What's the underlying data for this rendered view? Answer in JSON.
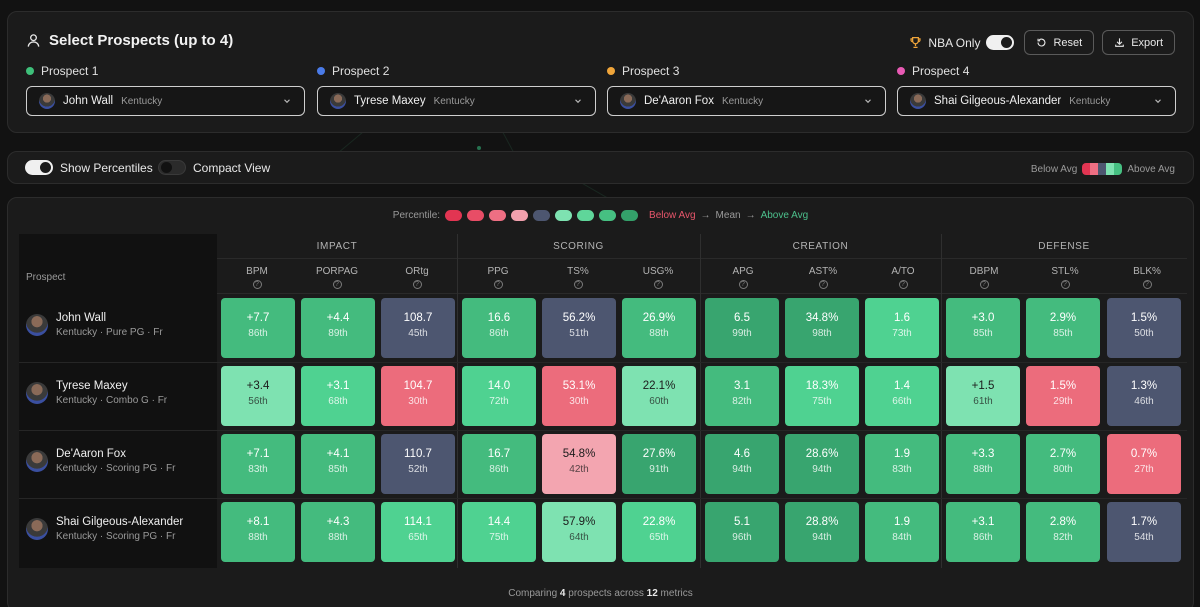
{
  "header": {
    "title": "Select Prospects (up to 4)",
    "nba_only_label": "NBA Only",
    "reset_label": "Reset",
    "export_label": "Export"
  },
  "slots": [
    {
      "label": "Prospect 1",
      "color": "#3ec07a",
      "name": "John Wall",
      "school": "Kentucky"
    },
    {
      "label": "Prospect 2",
      "color": "#4a7be8",
      "name": "Tyrese Maxey",
      "school": "Kentucky"
    },
    {
      "label": "Prospect 3",
      "color": "#f0a53a",
      "name": "De'Aaron Fox",
      "school": "Kentucky"
    },
    {
      "label": "Prospect 4",
      "color": "#e85ab4",
      "name": "Shai Gilgeous-Alexander",
      "school": "Kentucky"
    }
  ],
  "options": {
    "show_percentiles": "Show Percentiles",
    "compact_view": "Compact View",
    "below_avg": "Below Avg",
    "above_avg": "Above Avg"
  },
  "percentile_legend": {
    "label": "Percentile:",
    "below": "Below Avg",
    "mean": "Mean",
    "above": "Above Avg",
    "arrow": "→",
    "colors": [
      "#e23552",
      "#e84d66",
      "#ee6f83",
      "#f2a0ad",
      "#4d5670",
      "#7ee2b1",
      "#5fd69a",
      "#46c082",
      "#34a06a"
    ]
  },
  "table": {
    "prospect_header": "Prospect",
    "groups": [
      {
        "title": "IMPACT",
        "metrics": [
          "BPM",
          "PORPAG",
          "ORtg"
        ]
      },
      {
        "title": "SCORING",
        "metrics": [
          "PPG",
          "TS%",
          "USG%"
        ]
      },
      {
        "title": "CREATION",
        "metrics": [
          "APG",
          "AST%",
          "A/TO"
        ]
      },
      {
        "title": "DEFENSE",
        "metrics": [
          "DBPM",
          "STL%",
          "BLK%"
        ]
      }
    ],
    "rows": [
      {
        "name": "John Wall",
        "meta": "Kentucky · Pure PG · Fr",
        "cells": [
          [
            "+7.7",
            "86th"
          ],
          [
            "+4.4",
            "89th"
          ],
          [
            "108.7",
            "45th"
          ],
          [
            "16.6",
            "86th"
          ],
          [
            "56.2%",
            "51th"
          ],
          [
            "26.9%",
            "88th"
          ],
          [
            "6.5",
            "99th"
          ],
          [
            "34.8%",
            "98th"
          ],
          [
            "1.6",
            "73th"
          ],
          [
            "+3.0",
            "85th"
          ],
          [
            "2.9%",
            "85th"
          ],
          [
            "1.5%",
            "50th"
          ]
        ]
      },
      {
        "name": "Tyrese Maxey",
        "meta": "Kentucky · Combo G · Fr",
        "cells": [
          [
            "+3.4",
            "56th"
          ],
          [
            "+3.1",
            "68th"
          ],
          [
            "104.7",
            "30th"
          ],
          [
            "14.0",
            "72th"
          ],
          [
            "53.1%",
            "30th"
          ],
          [
            "22.1%",
            "60th"
          ],
          [
            "3.1",
            "82th"
          ],
          [
            "18.3%",
            "75th"
          ],
          [
            "1.4",
            "66th"
          ],
          [
            "+1.5",
            "61th"
          ],
          [
            "1.5%",
            "29th"
          ],
          [
            "1.3%",
            "46th"
          ]
        ]
      },
      {
        "name": "De'Aaron Fox",
        "meta": "Kentucky · Scoring PG · Fr",
        "cells": [
          [
            "+7.1",
            "83th"
          ],
          [
            "+4.1",
            "85th"
          ],
          [
            "110.7",
            "52th"
          ],
          [
            "16.7",
            "86th"
          ],
          [
            "54.8%",
            "42th"
          ],
          [
            "27.6%",
            "91th"
          ],
          [
            "4.6",
            "94th"
          ],
          [
            "28.6%",
            "94th"
          ],
          [
            "1.9",
            "83th"
          ],
          [
            "+3.3",
            "88th"
          ],
          [
            "2.7%",
            "80th"
          ],
          [
            "0.7%",
            "27th"
          ]
        ]
      },
      {
        "name": "Shai Gilgeous-Alexander",
        "meta": "Kentucky · Scoring PG · Fr",
        "cells": [
          [
            "+8.1",
            "88th"
          ],
          [
            "+4.3",
            "88th"
          ],
          [
            "114.1",
            "65th"
          ],
          [
            "14.4",
            "75th"
          ],
          [
            "57.9%",
            "64th"
          ],
          [
            "22.8%",
            "65th"
          ],
          [
            "5.1",
            "96th"
          ],
          [
            "28.8%",
            "94th"
          ],
          [
            "1.9",
            "84th"
          ],
          [
            "+3.1",
            "86th"
          ],
          [
            "2.8%",
            "82th"
          ],
          [
            "1.7%",
            "54th"
          ]
        ]
      }
    ]
  },
  "footer": {
    "prefix": "Comparing",
    "count": "4",
    "middle": "prospects across",
    "metrics": "12",
    "suffix": "metrics"
  }
}
